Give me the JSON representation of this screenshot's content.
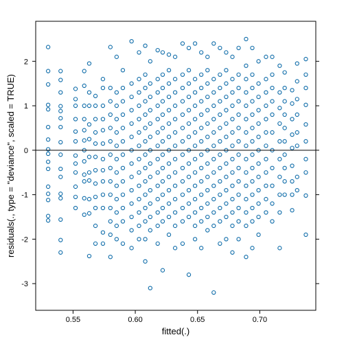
{
  "chart_data": {
    "type": "scatter",
    "title": "",
    "xlabel": "fitted(.)",
    "ylabel": "residuals(., type = \"deviance\", scaled = TRUE)",
    "xlim": [
      0.52,
      0.745
    ],
    "ylim": [
      -3.6,
      2.9
    ],
    "xticks": [
      0.55,
      0.6,
      0.65,
      0.7
    ],
    "xtick_labels": [
      "0.55",
      "0.60",
      "0.65",
      "0.70"
    ],
    "yticks": [
      -3,
      -2,
      -1,
      0,
      1,
      2
    ],
    "ytick_labels": [
      "-3",
      "-2",
      "-1",
      "0",
      "1",
      "2"
    ],
    "reference_line_y": 0,
    "grid": false,
    "marker": "open-circle",
    "point_color": "#0b6aa8",
    "columns": [
      {
        "x": 0.53,
        "y": [
          2.32,
          1.78,
          1.48,
          1.02,
          0.92,
          0.52,
          0.24,
          0.02,
          -0.08,
          -0.26,
          -0.42,
          -0.82,
          -0.98,
          -1.12,
          -1.48,
          -1.58
        ]
      },
      {
        "x": 0.54,
        "y": [
          1.78,
          1.58,
          1.3,
          0.99,
          0.88,
          0.72,
          0.52,
          0.18,
          -0.1,
          -0.42,
          -0.6,
          -0.98,
          -1.08,
          -1.56,
          -2.02,
          -2.3
        ]
      },
      {
        "x": 0.552,
        "y": [
          1.38,
          1.15,
          1.0,
          0.7,
          0.42,
          0.2,
          -0.12,
          -0.3,
          -0.5,
          -0.82,
          -1.05,
          -1.3
        ]
      },
      {
        "x": 0.559,
        "y": [
          1.78,
          1.45,
          1.0,
          0.7,
          0.45,
          0.22,
          0.0,
          -0.25,
          -0.55,
          -0.7,
          -1.08,
          -1.45
        ]
      },
      {
        "x": 0.563,
        "y": [
          1.95,
          1.3,
          1.0,
          0.58,
          0.25,
          -0.15,
          -0.5,
          -0.68,
          -1.1,
          -1.42,
          -2.38
        ]
      },
      {
        "x": 0.568,
        "y": [
          1.22,
          1.0,
          0.7,
          0.4,
          0.15,
          -0.15,
          -0.45,
          -0.75,
          -1.05,
          -1.3,
          -1.7,
          -2.1
        ]
      },
      {
        "x": 0.574,
        "y": [
          1.6,
          1.4,
          1.0,
          0.7,
          0.45,
          0.15,
          -0.2,
          -0.45,
          -0.7,
          -1.0,
          -1.3,
          -1.85,
          -2.1
        ]
      },
      {
        "x": 0.58,
        "y": [
          2.32,
          1.4,
          1.1,
          0.8,
          0.5,
          0.2,
          -0.1,
          -0.4,
          -0.7,
          -1.0,
          -1.3,
          -1.6,
          -1.9,
          -2.4
        ]
      },
      {
        "x": 0.585,
        "y": [
          2.1,
          1.3,
          1.0,
          0.7,
          0.4,
          0.1,
          -0.2,
          -0.5,
          -0.8,
          -1.1,
          -1.4,
          -1.7,
          -2.0
        ]
      },
      {
        "x": 0.59,
        "y": [
          1.8,
          1.4,
          1.1,
          0.8,
          0.5,
          0.2,
          -0.1,
          -0.4,
          -0.7,
          -1.0,
          -1.3,
          -1.6,
          -2.1
        ]
      },
      {
        "x": 0.597,
        "y": [
          2.45,
          1.5,
          1.2,
          0.9,
          0.6,
          0.3,
          0.0,
          -0.3,
          -0.6,
          -0.9,
          -1.2,
          -1.5,
          -1.8,
          -2.2
        ]
      },
      {
        "x": 0.603,
        "y": [
          2.2,
          1.6,
          1.3,
          1.0,
          0.7,
          0.4,
          0.1,
          -0.2,
          -0.5,
          -0.8,
          -1.1,
          -1.4,
          -1.7,
          -2.0
        ]
      },
      {
        "x": 0.608,
        "y": [
          2.35,
          1.7,
          1.4,
          1.1,
          0.8,
          0.5,
          0.2,
          -0.1,
          -0.4,
          -0.7,
          -1.0,
          -1.3,
          -1.6,
          -2.0,
          -2.5
        ]
      },
      {
        "x": 0.612,
        "y": [
          2.0,
          1.5,
          1.2,
          0.9,
          0.6,
          0.3,
          0.0,
          -0.3,
          -0.6,
          -0.9,
          -1.2,
          -1.5,
          -1.8,
          -3.1
        ]
      },
      {
        "x": 0.618,
        "y": [
          2.25,
          1.6,
          1.3,
          1.0,
          0.7,
          0.4,
          0.1,
          -0.2,
          -0.5,
          -0.8,
          -1.1,
          -1.4,
          -1.7,
          -2.1
        ]
      },
      {
        "x": 0.622,
        "y": [
          2.2,
          1.7,
          1.4,
          1.1,
          0.8,
          0.5,
          0.2,
          -0.1,
          -0.4,
          -0.7,
          -1.0,
          -1.3,
          -1.6,
          -2.7
        ]
      },
      {
        "x": 0.627,
        "y": [
          2.15,
          1.8,
          1.5,
          1.2,
          0.9,
          0.6,
          0.3,
          0.0,
          -0.3,
          -0.6,
          -0.9,
          -1.2,
          -1.5,
          -1.9
        ]
      },
      {
        "x": 0.632,
        "y": [
          2.1,
          1.6,
          1.3,
          1.0,
          0.7,
          0.4,
          0.1,
          -0.2,
          -0.5,
          -0.8,
          -1.1,
          -1.4,
          -1.7,
          -2.2
        ]
      },
      {
        "x": 0.638,
        "y": [
          2.4,
          1.7,
          1.4,
          1.1,
          0.8,
          0.5,
          0.2,
          -0.1,
          -0.4,
          -0.7,
          -1.0,
          -1.3,
          -1.6,
          -2.1
        ]
      },
      {
        "x": 0.643,
        "y": [
          2.3,
          1.8,
          1.5,
          1.2,
          0.9,
          0.6,
          0.3,
          0.0,
          -0.3,
          -0.6,
          -0.9,
          -1.2,
          -1.5,
          -2.8
        ]
      },
      {
        "x": 0.648,
        "y": [
          2.4,
          1.6,
          1.3,
          1.0,
          0.7,
          0.4,
          0.1,
          -0.2,
          -0.5,
          -0.8,
          -1.1,
          -1.4,
          -1.7,
          -2.0
        ]
      },
      {
        "x": 0.653,
        "y": [
          2.2,
          1.7,
          1.4,
          1.1,
          0.8,
          0.5,
          0.2,
          -0.1,
          -0.4,
          -0.7,
          -1.0,
          -1.3,
          -1.6,
          -2.2
        ]
      },
      {
        "x": 0.658,
        "y": [
          2.1,
          1.8,
          1.5,
          1.2,
          0.9,
          0.6,
          0.3,
          0.0,
          -0.3,
          -0.6,
          -0.9,
          -1.2,
          -1.5,
          -1.8
        ]
      },
      {
        "x": 0.663,
        "y": [
          2.4,
          1.6,
          1.3,
          1.0,
          0.7,
          0.4,
          0.1,
          -0.2,
          -0.5,
          -0.8,
          -1.1,
          -1.4,
          -1.7,
          -3.2
        ]
      },
      {
        "x": 0.668,
        "y": [
          2.3,
          1.7,
          1.4,
          1.1,
          0.8,
          0.5,
          0.2,
          -0.1,
          -0.4,
          -0.7,
          -1.0,
          -1.3,
          -1.6,
          -2.1
        ]
      },
      {
        "x": 0.673,
        "y": [
          2.2,
          1.8,
          1.5,
          1.2,
          0.9,
          0.6,
          0.3,
          0.0,
          -0.3,
          -0.6,
          -0.9,
          -1.2,
          -1.5,
          -2.0
        ]
      },
      {
        "x": 0.678,
        "y": [
          2.1,
          1.6,
          1.3,
          1.0,
          0.7,
          0.4,
          0.1,
          -0.2,
          -0.5,
          -0.8,
          -1.1,
          -1.4,
          -1.7,
          -2.3
        ]
      },
      {
        "x": 0.683,
        "y": [
          2.3,
          1.7,
          1.4,
          1.1,
          0.8,
          0.5,
          0.2,
          -0.1,
          -0.4,
          -0.7,
          -1.0,
          -1.3,
          -1.6,
          -2.0
        ]
      },
      {
        "x": 0.689,
        "y": [
          2.5,
          1.9,
          1.6,
          1.3,
          1.0,
          0.7,
          0.4,
          0.1,
          -0.2,
          -0.5,
          -0.8,
          -1.1,
          -1.4,
          -1.7,
          -2.4
        ]
      },
      {
        "x": 0.694,
        "y": [
          2.3,
          1.7,
          1.4,
          1.1,
          0.8,
          0.5,
          0.2,
          -0.1,
          -0.4,
          -0.7,
          -1.0,
          -1.3,
          -1.6,
          -2.2
        ]
      },
      {
        "x": 0.699,
        "y": [
          2.0,
          1.5,
          1.2,
          0.9,
          0.6,
          0.3,
          0.0,
          -0.3,
          -0.6,
          -0.9,
          -1.2,
          -1.5,
          -1.9
        ]
      },
      {
        "x": 0.705,
        "y": [
          2.1,
          1.6,
          1.3,
          1.0,
          0.7,
          0.4,
          0.1,
          -0.2,
          -0.5,
          -0.8,
          -1.1,
          -1.4
        ]
      },
      {
        "x": 0.71,
        "y": [
          2.1,
          1.7,
          1.4,
          1.1,
          0.8,
          0.4,
          0.0,
          -0.4,
          -0.8,
          -1.2,
          -1.6
        ]
      },
      {
        "x": 0.716,
        "y": [
          1.9,
          1.3,
          0.95,
          0.6,
          0.2,
          -0.2,
          -0.6,
          -1.0,
          -1.4,
          -2.2
        ]
      },
      {
        "x": 0.72,
        "y": [
          1.75,
          1.4,
          1.1,
          0.8,
          0.5,
          0.2,
          -0.1,
          -0.4,
          -0.7,
          -1.0
        ]
      },
      {
        "x": 0.726,
        "y": [
          1.35,
          1.05,
          0.7,
          0.35,
          0.05,
          -0.35,
          -0.7,
          -1.0,
          -1.35
        ]
      },
      {
        "x": 0.73,
        "y": [
          1.95,
          1.55,
          1.15,
          0.8,
          0.4,
          0.1,
          -0.6,
          -0.9
        ]
      },
      {
        "x": 0.737,
        "y": [
          2.05,
          1.7,
          1.4,
          1.02,
          0.58,
          0.2,
          -0.2,
          -0.5,
          -1.02,
          -1.9
        ]
      }
    ]
  }
}
